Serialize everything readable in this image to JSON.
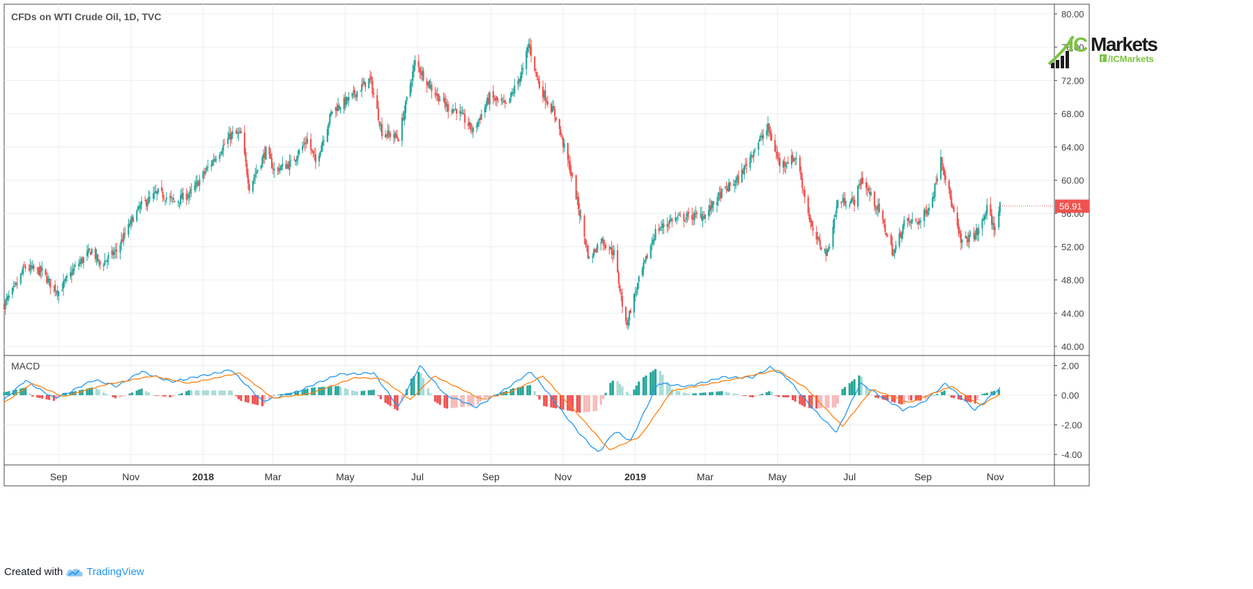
{
  "chart_data": [
    {
      "type": "candlestick",
      "title": "CFDs on WTI Crude Oil, 1D, TVC",
      "ylim": [
        40,
        80
      ],
      "y_ticks": [
        "80.00",
        "76.00",
        "72.00",
        "68.00",
        "64.00",
        "60.00",
        "56.00",
        "52.00",
        "48.00",
        "44.00",
        "40.00"
      ],
      "last_price": "56.91",
      "grid": true,
      "x_start": "2017-07-17",
      "x_end": "2019-11-05",
      "x_ticks": [
        {
          "label": "Sep",
          "date": "2017-09-01",
          "bold": false
        },
        {
          "label": "Nov",
          "date": "2017-11-01",
          "bold": false
        },
        {
          "label": "2018",
          "date": "2018-01-01",
          "bold": true
        },
        {
          "label": "Mar",
          "date": "2018-03-01",
          "bold": false
        },
        {
          "label": "May",
          "date": "2018-05-01",
          "bold": false
        },
        {
          "label": "Jul",
          "date": "2018-07-01",
          "bold": false
        },
        {
          "label": "Sep",
          "date": "2018-09-01",
          "bold": false
        },
        {
          "label": "Nov",
          "date": "2018-11-01",
          "bold": false
        },
        {
          "label": "2019",
          "date": "2019-01-01",
          "bold": true
        },
        {
          "label": "Mar",
          "date": "2019-03-01",
          "bold": false
        },
        {
          "label": "May",
          "date": "2019-05-01",
          "bold": false
        },
        {
          "label": "Jul",
          "date": "2019-07-01",
          "bold": false
        },
        {
          "label": "Sep",
          "date": "2019-09-01",
          "bold": false
        },
        {
          "label": "Nov",
          "date": "2019-11-01",
          "bold": false
        }
      ],
      "close_path": [
        {
          "x": "2017-07-17",
          "y": 45.0
        },
        {
          "x": "2017-07-28",
          "y": 47.5
        },
        {
          "x": "2017-08-03",
          "y": 49.5
        },
        {
          "x": "2017-08-18",
          "y": 49.0
        },
        {
          "x": "2017-08-25",
          "y": 47.5
        },
        {
          "x": "2017-09-01",
          "y": 46.6
        },
        {
          "x": "2017-09-15",
          "y": 49.5
        },
        {
          "x": "2017-09-29",
          "y": 51.6
        },
        {
          "x": "2017-10-06",
          "y": 49.8
        },
        {
          "x": "2017-10-20",
          "y": 51.5
        },
        {
          "x": "2017-11-03",
          "y": 55.5
        },
        {
          "x": "2017-11-10",
          "y": 57.0
        },
        {
          "x": "2017-11-24",
          "y": 58.5
        },
        {
          "x": "2017-12-08",
          "y": 57.4
        },
        {
          "x": "2017-12-22",
          "y": 58.5
        },
        {
          "x": "2018-01-05",
          "y": 61.5
        },
        {
          "x": "2018-01-25",
          "y": 65.5
        },
        {
          "x": "2018-02-02",
          "y": 65.5
        },
        {
          "x": "2018-02-09",
          "y": 59.2
        },
        {
          "x": "2018-02-23",
          "y": 63.5
        },
        {
          "x": "2018-03-02",
          "y": 61.2
        },
        {
          "x": "2018-03-16",
          "y": 62.0
        },
        {
          "x": "2018-03-30",
          "y": 64.9
        },
        {
          "x": "2018-04-06",
          "y": 62.1
        },
        {
          "x": "2018-04-20",
          "y": 68.4
        },
        {
          "x": "2018-05-04",
          "y": 69.7
        },
        {
          "x": "2018-05-22",
          "y": 72.2
        },
        {
          "x": "2018-06-01",
          "y": 65.8
        },
        {
          "x": "2018-06-15",
          "y": 65.1
        },
        {
          "x": "2018-06-29",
          "y": 74.2
        },
        {
          "x": "2018-07-13",
          "y": 71.0
        },
        {
          "x": "2018-07-27",
          "y": 68.7
        },
        {
          "x": "2018-08-03",
          "y": 68.5
        },
        {
          "x": "2018-08-17",
          "y": 65.9
        },
        {
          "x": "2018-08-31",
          "y": 70.0
        },
        {
          "x": "2018-09-14",
          "y": 68.9
        },
        {
          "x": "2018-09-28",
          "y": 73.2
        },
        {
          "x": "2018-10-03",
          "y": 76.4
        },
        {
          "x": "2018-10-12",
          "y": 71.3
        },
        {
          "x": "2018-10-26",
          "y": 67.6
        },
        {
          "x": "2018-11-09",
          "y": 60.2
        },
        {
          "x": "2018-11-23",
          "y": 50.4
        },
        {
          "x": "2018-12-03",
          "y": 52.9
        },
        {
          "x": "2018-12-14",
          "y": 51.2
        },
        {
          "x": "2018-12-24",
          "y": 42.5
        },
        {
          "x": "2019-01-04",
          "y": 47.9
        },
        {
          "x": "2019-01-18",
          "y": 53.8
        },
        {
          "x": "2019-02-01",
          "y": 55.3
        },
        {
          "x": "2019-02-15",
          "y": 55.6
        },
        {
          "x": "2019-03-01",
          "y": 55.8
        },
        {
          "x": "2019-03-15",
          "y": 58.5
        },
        {
          "x": "2019-03-29",
          "y": 60.1
        },
        {
          "x": "2019-04-12",
          "y": 63.9
        },
        {
          "x": "2019-04-23",
          "y": 66.3
        },
        {
          "x": "2019-05-03",
          "y": 61.9
        },
        {
          "x": "2019-05-17",
          "y": 62.8
        },
        {
          "x": "2019-05-31",
          "y": 53.5
        },
        {
          "x": "2019-06-12",
          "y": 51.1
        },
        {
          "x": "2019-06-21",
          "y": 57.4
        },
        {
          "x": "2019-07-05",
          "y": 57.5
        },
        {
          "x": "2019-07-11",
          "y": 60.2
        },
        {
          "x": "2019-07-26",
          "y": 56.2
        },
        {
          "x": "2019-08-07",
          "y": 51.1
        },
        {
          "x": "2019-08-16",
          "y": 54.9
        },
        {
          "x": "2019-08-30",
          "y": 55.1
        },
        {
          "x": "2019-09-09",
          "y": 57.8
        },
        {
          "x": "2019-09-16",
          "y": 62.9
        },
        {
          "x": "2019-09-27",
          "y": 55.9
        },
        {
          "x": "2019-10-03",
          "y": 52.5
        },
        {
          "x": "2019-10-18",
          "y": 53.8
        },
        {
          "x": "2019-10-25",
          "y": 56.6
        },
        {
          "x": "2019-10-31",
          "y": 54.2
        },
        {
          "x": "2019-11-05",
          "y": 56.91
        }
      ]
    },
    {
      "type": "line",
      "title": "MACD",
      "ylim": [
        -4.8,
        2.4
      ],
      "y_ticks": [
        "2.00",
        "0.00",
        "-2.00",
        "-4.00"
      ],
      "x_start": "2017-07-17",
      "x_end": "2019-11-05",
      "series": [
        {
          "color": "#2196f3",
          "role": "macd",
          "values": [
            {
              "x": "2017-07-17",
              "y": -0.3
            },
            {
              "x": "2017-08-04",
              "y": 1.0
            },
            {
              "x": "2017-08-28",
              "y": -0.2
            },
            {
              "x": "2017-09-10",
              "y": 0.2
            },
            {
              "x": "2017-10-01",
              "y": 1.05
            },
            {
              "x": "2017-10-20",
              "y": 0.6
            },
            {
              "x": "2017-11-10",
              "y": 1.6
            },
            {
              "x": "2017-12-05",
              "y": 0.9
            },
            {
              "x": "2018-01-25",
              "y": 1.7
            },
            {
              "x": "2018-02-20",
              "y": -0.4
            },
            {
              "x": "2018-03-20",
              "y": 0.2
            },
            {
              "x": "2018-04-25",
              "y": 1.4
            },
            {
              "x": "2018-05-25",
              "y": 1.5
            },
            {
              "x": "2018-06-15",
              "y": -0.8
            },
            {
              "x": "2018-07-03",
              "y": 2.0
            },
            {
              "x": "2018-07-25",
              "y": 0.0
            },
            {
              "x": "2018-08-20",
              "y": -0.8
            },
            {
              "x": "2018-09-15",
              "y": 0.5
            },
            {
              "x": "2018-10-05",
              "y": 1.6
            },
            {
              "x": "2018-11-15",
              "y": -2.6
            },
            {
              "x": "2018-12-01",
              "y": -3.9
            },
            {
              "x": "2018-12-15",
              "y": -2.4
            },
            {
              "x": "2018-12-28",
              "y": -3.1
            },
            {
              "x": "2019-01-20",
              "y": 0.8
            },
            {
              "x": "2019-02-15",
              "y": 0.6
            },
            {
              "x": "2019-03-15",
              "y": 1.2
            },
            {
              "x": "2019-04-10",
              "y": 1.2
            },
            {
              "x": "2019-04-25",
              "y": 1.9
            },
            {
              "x": "2019-05-10",
              "y": 1.1
            },
            {
              "x": "2019-06-01",
              "y": -1.0
            },
            {
              "x": "2019-06-20",
              "y": -2.5
            },
            {
              "x": "2019-07-10",
              "y": 0.8
            },
            {
              "x": "2019-08-15",
              "y": -1.0
            },
            {
              "x": "2019-09-01",
              "y": -0.5
            },
            {
              "x": "2019-09-20",
              "y": 0.8
            },
            {
              "x": "2019-10-15",
              "y": -1.0
            },
            {
              "x": "2019-11-05",
              "y": 0.5
            }
          ]
        },
        {
          "color": "#ff7f0e",
          "role": "signal",
          "values": [
            {
              "x": "2017-07-17",
              "y": -0.5
            },
            {
              "x": "2017-08-10",
              "y": 0.8
            },
            {
              "x": "2017-09-05",
              "y": -0.1
            },
            {
              "x": "2017-10-10",
              "y": 0.7
            },
            {
              "x": "2017-11-20",
              "y": 1.3
            },
            {
              "x": "2017-12-20",
              "y": 0.8
            },
            {
              "x": "2018-02-01",
              "y": 1.5
            },
            {
              "x": "2018-03-01",
              "y": -0.2
            },
            {
              "x": "2018-04-01",
              "y": 0.1
            },
            {
              "x": "2018-05-10",
              "y": 1.2
            },
            {
              "x": "2018-06-01",
              "y": 1.1
            },
            {
              "x": "2018-06-25",
              "y": -0.3
            },
            {
              "x": "2018-07-15",
              "y": 1.3
            },
            {
              "x": "2018-08-25",
              "y": -0.3
            },
            {
              "x": "2018-09-20",
              "y": 0.3
            },
            {
              "x": "2018-10-15",
              "y": 1.3
            },
            {
              "x": "2018-11-25",
              "y": -2.3
            },
            {
              "x": "2018-12-10",
              "y": -3.7
            },
            {
              "x": "2019-01-05",
              "y": -2.8
            },
            {
              "x": "2019-02-01",
              "y": 0.3
            },
            {
              "x": "2019-03-20",
              "y": 1.0
            },
            {
              "x": "2019-05-01",
              "y": 1.7
            },
            {
              "x": "2019-05-25",
              "y": 0.5
            },
            {
              "x": "2019-06-25",
              "y": -2.1
            },
            {
              "x": "2019-07-20",
              "y": 0.4
            },
            {
              "x": "2019-08-20",
              "y": -0.5
            },
            {
              "x": "2019-09-25",
              "y": 0.6
            },
            {
              "x": "2019-10-20",
              "y": -0.7
            },
            {
              "x": "2019-11-05",
              "y": 0.1
            }
          ]
        }
      ]
    }
  ],
  "logo": {
    "brand_ic": "IC",
    "brand_markets": "Markets",
    "handle": "/ICMarkets",
    "handle_icon": "f"
  },
  "footer": {
    "created_with": "Created with",
    "tradingview": "TradingView"
  },
  "colors": {
    "up": "#26a69a",
    "down": "#ef5350",
    "grid": "#e9eef3",
    "border": "#4a4a4a",
    "macd": "#2196f3",
    "signal": "#ff7f0e",
    "price_label_bg": "#ef5350"
  }
}
